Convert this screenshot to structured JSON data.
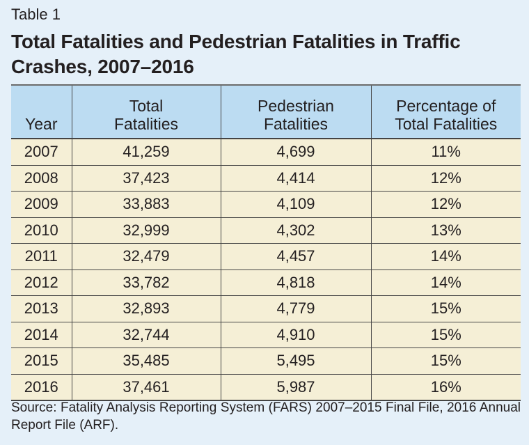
{
  "table_label": "Table 1",
  "title": "Total Fatalities and Pedestrian Fatalities in Traffic Crashes, 2007–2016",
  "headers": {
    "year": "Year",
    "total_line1": "Total",
    "total_line2": "Fatalities",
    "ped_line1": "Pedestrian",
    "ped_line2": "Fatalities",
    "pct_line1": "Percentage of",
    "pct_line2": "Total Fatalities"
  },
  "rows": [
    {
      "year": "2007",
      "total": "41,259",
      "pedestrian": "4,699",
      "percent": "11%"
    },
    {
      "year": "2008",
      "total": "37,423",
      "pedestrian": "4,414",
      "percent": "12%"
    },
    {
      "year": "2009",
      "total": "33,883",
      "pedestrian": "4,109",
      "percent": "12%"
    },
    {
      "year": "2010",
      "total": "32,999",
      "pedestrian": "4,302",
      "percent": "13%"
    },
    {
      "year": "2011",
      "total": "32,479",
      "pedestrian": "4,457",
      "percent": "14%"
    },
    {
      "year": "2012",
      "total": "33,782",
      "pedestrian": "4,818",
      "percent": "14%"
    },
    {
      "year": "2013",
      "total": "32,893",
      "pedestrian": "4,779",
      "percent": "15%"
    },
    {
      "year": "2014",
      "total": "32,744",
      "pedestrian": "4,910",
      "percent": "15%"
    },
    {
      "year": "2015",
      "total": "35,485",
      "pedestrian": "5,495",
      "percent": "15%"
    },
    {
      "year": "2016",
      "total": "37,461",
      "pedestrian": "5,987",
      "percent": "16%"
    }
  ],
  "source": "Source: Fatality Analysis Reporting System (FARS) 2007–2015 Final File, 2016 Annual Report File (ARF).",
  "colors": {
    "background": "#e5f0f9",
    "header_fill": "#bcdcf2",
    "row_fill": "#f5efd6",
    "text": "#231f20"
  }
}
